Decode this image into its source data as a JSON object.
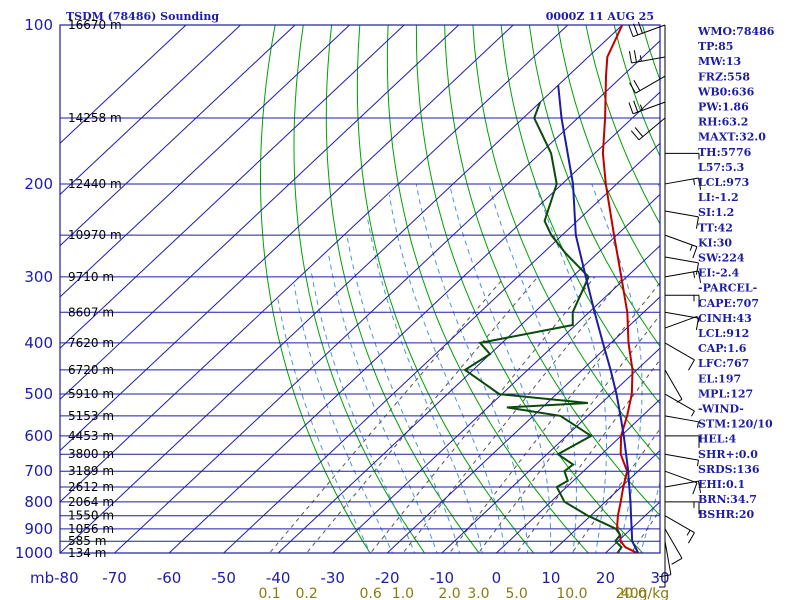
{
  "header": {
    "title": "TSDM (78486) Sounding",
    "time": "0000Z 11 AUG 25"
  },
  "chart_data": {
    "type": "line",
    "title": "TSDM (78486) Sounding",
    "xlim": [
      -80,
      30
    ],
    "ylim": [
      1000,
      100
    ],
    "y_scale": "log",
    "pressure_ticks": [
      100,
      200,
      300,
      400,
      500,
      600,
      700,
      800,
      900,
      1000
    ],
    "pressure_tick_labels": [
      "100",
      "200",
      "300",
      "400",
      "500",
      "600",
      "700",
      "800",
      "900",
      "1000"
    ],
    "x_tick_labels": [
      "mb-80",
      "-70",
      "-60",
      "-50",
      "-40",
      "-30",
      "-20",
      "-10",
      "0",
      "10",
      "20",
      "30"
    ],
    "x_tick_values": [
      -80,
      -70,
      -60,
      -50,
      -40,
      -30,
      -20,
      -10,
      0,
      10,
      20,
      30
    ],
    "height_labels": [
      {
        "p": 100,
        "label": "16670 m"
      },
      {
        "p": 150,
        "label": "14258 m"
      },
      {
        "p": 200,
        "label": "12440 m"
      },
      {
        "p": 250,
        "label": "10970 m"
      },
      {
        "p": 300,
        "label": "9710 m"
      },
      {
        "p": 350,
        "label": "8607 m"
      },
      {
        "p": 400,
        "label": "7620 m"
      },
      {
        "p": 450,
        "label": "6720 m"
      },
      {
        "p": 500,
        "label": "5910 m"
      },
      {
        "p": 550,
        "label": "5153 m"
      },
      {
        "p": 600,
        "label": "4453 m"
      },
      {
        "p": 650,
        "label": "3800 m"
      },
      {
        "p": 700,
        "label": "3189 m"
      },
      {
        "p": 750,
        "label": "2612 m"
      },
      {
        "p": 800,
        "label": "2064 m"
      },
      {
        "p": 850,
        "label": "1550 m"
      },
      {
        "p": 900,
        "label": "1056 m"
      },
      {
        "p": 950,
        "label": "585 m"
      },
      {
        "p": 1000,
        "label": "134 m"
      }
    ],
    "mixing_ratio_labels": [
      {
        "w": 0.1,
        "label": "0.1"
      },
      {
        "w": 0.2,
        "label": "0.2"
      },
      {
        "w": 0.6,
        "label": "0.6"
      },
      {
        "w": 1.0,
        "label": "1.0"
      },
      {
        "w": 2.0,
        "label": "2.0"
      },
      {
        "w": 3.0,
        "label": "3.0"
      },
      {
        "w": 5.0,
        "label": "5.0"
      },
      {
        "w": 10.0,
        "label": "10.0"
      },
      {
        "w": 20.0,
        "label": "20.0"
      },
      {
        "w": 40.0,
        "label": "40g/kg"
      }
    ],
    "series": [
      {
        "kind": "temperature",
        "color": "#c00000",
        "points": [
          [
            1008,
            27.0
          ],
          [
            1000,
            25.8
          ],
          [
            975,
            22.5
          ],
          [
            950,
            20.5
          ],
          [
            925,
            19.2
          ],
          [
            900,
            17.4
          ],
          [
            850,
            15.0
          ],
          [
            800,
            12.8
          ],
          [
            750,
            10.4
          ],
          [
            700,
            8.0
          ],
          [
            650,
            3.5
          ],
          [
            600,
            0.0
          ],
          [
            550,
            -2.8
          ],
          [
            500,
            -6.2
          ],
          [
            450,
            -10.8
          ],
          [
            400,
            -16.8
          ],
          [
            350,
            -23.0
          ],
          [
            300,
            -31.0
          ],
          [
            250,
            -40.5
          ],
          [
            200,
            -52.0
          ],
          [
            175,
            -58.5
          ],
          [
            150,
            -65.0
          ],
          [
            125,
            -73.0
          ],
          [
            115,
            -76.5
          ],
          [
            100,
            -80.0
          ]
        ]
      },
      {
        "kind": "dewpoint",
        "color": "#0a4a0a",
        "points": [
          [
            1000,
            22.2
          ],
          [
            975,
            21.8
          ],
          [
            950,
            19.5
          ],
          [
            925,
            19.2
          ],
          [
            900,
            17.2
          ],
          [
            850,
            9.5
          ],
          [
            800,
            2.5
          ],
          [
            750,
            -1.8
          ],
          [
            730,
            -1.0
          ],
          [
            700,
            -3.5
          ],
          [
            680,
            -3.2
          ],
          [
            650,
            -8.0
          ],
          [
            600,
            -5.5
          ],
          [
            550,
            -15.0
          ],
          [
            530,
            -26.5
          ],
          [
            520,
            -12.5
          ],
          [
            500,
            -30.5
          ],
          [
            450,
            -41.5
          ],
          [
            420,
            -40.0
          ],
          [
            400,
            -44.0
          ],
          [
            370,
            -30.5
          ],
          [
            350,
            -33.0
          ],
          [
            300,
            -37.0
          ],
          [
            270,
            -46.0
          ],
          [
            250,
            -52.0
          ],
          [
            235,
            -56.0
          ],
          [
            200,
            -61.0
          ],
          [
            175,
            -68.0
          ],
          [
            150,
            -78.0
          ],
          [
            140,
            -80.0
          ]
        ]
      },
      {
        "kind": "parcel",
        "color": "#1c1ca8",
        "points": [
          [
            1000,
            26.0
          ],
          [
            950,
            22.6
          ],
          [
            912,
            20.7
          ],
          [
            850,
            17.4
          ],
          [
            800,
            14.6
          ],
          [
            750,
            11.5
          ],
          [
            700,
            8.2
          ],
          [
            650,
            4.5
          ],
          [
            600,
            0.5
          ],
          [
            550,
            -4.0
          ],
          [
            500,
            -9.0
          ],
          [
            450,
            -14.8
          ],
          [
            400,
            -21.5
          ],
          [
            350,
            -29.0
          ],
          [
            300,
            -37.5
          ],
          [
            250,
            -47.5
          ],
          [
            200,
            -58.0
          ],
          [
            150,
            -73.0
          ],
          [
            130,
            -80.0
          ]
        ]
      }
    ],
    "indices": [
      "WMO:78486",
      "TP:85",
      "MW:13",
      "FRZ:558",
      "WB0:636",
      "PW:1.86",
      "RH:63.2",
      "MAXT:32.0",
      "TH:5776",
      "L57:5.3",
      "LCL:973",
      "LI:-1.2",
      "SI:1.2",
      "TT:42",
      "KI:30",
      "SW:224",
      "EI:-2.4",
      "-PARCEL-",
      "CAPE:707",
      "CINH:43",
      "LCL:912",
      "CAP:1.6",
      "LFC:767",
      "EL:197",
      "MPL:127",
      "-WIND-",
      "STM:120/10",
      "HEL:4",
      "SHR+:0.0",
      "SRDS:136",
      "EHI:0.1",
      "BRN:34.7",
      "BSHR:20"
    ],
    "wind_barbs": [
      {
        "p": 100,
        "dir": 250,
        "kt": 30
      },
      {
        "p": 115,
        "dir": 260,
        "kt": 25
      },
      {
        "p": 125,
        "dir": 240,
        "kt": 20
      },
      {
        "p": 140,
        "dir": 250,
        "kt": 25
      },
      {
        "p": 150,
        "dir": 230,
        "kt": 20
      },
      {
        "p": 175,
        "dir": 90,
        "kt": 5
      },
      {
        "p": 200,
        "dir": 80,
        "kt": 15
      },
      {
        "p": 225,
        "dir": 100,
        "kt": 10
      },
      {
        "p": 250,
        "dir": 110,
        "kt": 15
      },
      {
        "p": 275,
        "dir": 100,
        "kt": 10
      },
      {
        "p": 300,
        "dir": 80,
        "kt": 15
      },
      {
        "p": 325,
        "dir": 90,
        "kt": 15
      },
      {
        "p": 350,
        "dir": 100,
        "kt": 10
      },
      {
        "p": 375,
        "dir": 70,
        "kt": 5
      },
      {
        "p": 400,
        "dir": 120,
        "kt": 10
      },
      {
        "p": 450,
        "dir": 150,
        "kt": 5
      },
      {
        "p": 500,
        "dir": 120,
        "kt": 5
      },
      {
        "p": 550,
        "dir": 100,
        "kt": 5
      },
      {
        "p": 600,
        "dir": 90,
        "kt": 10
      },
      {
        "p": 650,
        "dir": 100,
        "kt": 5
      },
      {
        "p": 700,
        "dir": 110,
        "kt": 10
      },
      {
        "p": 750,
        "dir": 80,
        "kt": 10
      },
      {
        "p": 800,
        "dir": 90,
        "kt": 15
      },
      {
        "p": 850,
        "dir": 120,
        "kt": 15
      },
      {
        "p": 900,
        "dir": 150,
        "kt": 10
      },
      {
        "p": 950,
        "dir": 170,
        "kt": 10
      },
      {
        "p": 1000,
        "dir": 180,
        "kt": 5
      }
    ],
    "colors": {
      "frame": "#1c1ca8",
      "isotherm": "#1c1ca8",
      "dry_adiabat": "#00a000",
      "moist_adiabat": "#4a96d8",
      "mixing_ratio": "#555555",
      "height_text": "#000000",
      "mix_text": "#8a7a12"
    }
  }
}
